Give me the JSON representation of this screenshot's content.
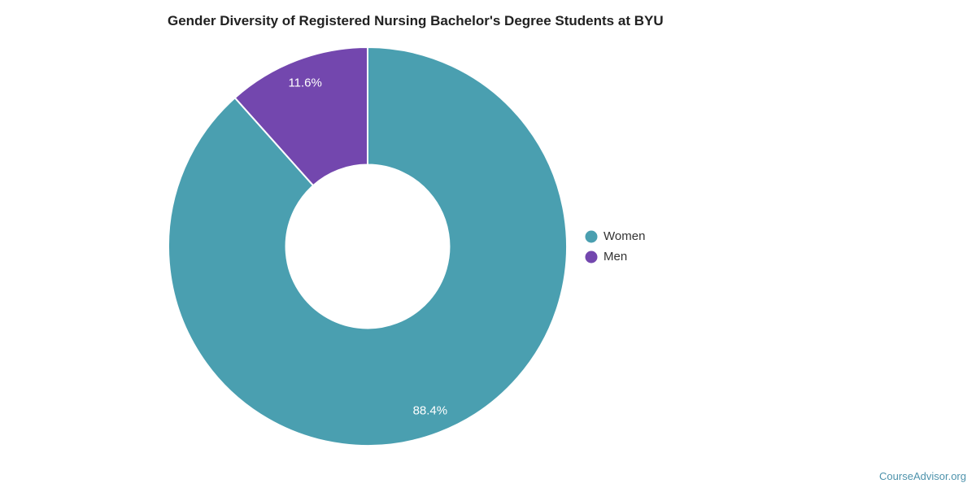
{
  "title": "Gender Diversity of Registered Nursing Bachelor's Degree Students at BYU",
  "chart_data": {
    "type": "pie",
    "subtype": "donut",
    "title": "Gender Diversity of Registered Nursing Bachelor's Degree Students at BYU",
    "series": [
      {
        "name": "Women",
        "value": 88.4,
        "label": "88.4%",
        "color": "#4A9FB0"
      },
      {
        "name": "Men",
        "value": 11.6,
        "label": "11.6%",
        "color": "#7347AE"
      }
    ],
    "start_angle_deg": 0,
    "direction": "clockwise",
    "inner_radius_ratio": 0.41,
    "label_radius_ratio": 0.88,
    "slice_border_color": "#ffffff",
    "legend_position": "right",
    "background_color": "#ffffff"
  },
  "legend": {
    "items": [
      {
        "label": "Women"
      },
      {
        "label": "Men"
      }
    ]
  },
  "footer": {
    "attribution": "CourseAdvisor.org",
    "color": "#4E93AC"
  }
}
